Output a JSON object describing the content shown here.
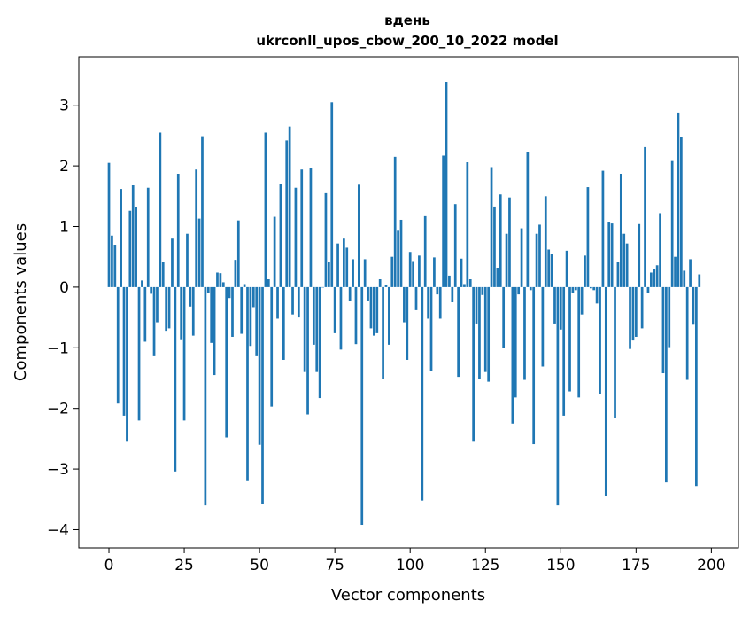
{
  "chart_data": {
    "type": "bar",
    "title_line1": "вдень",
    "title_line2": "ukrconll_upos_cbow_200_10_2022 model",
    "xlabel": "Vector components",
    "ylabel": "Components values",
    "xlim": [
      -10,
      209
    ],
    "ylim": [
      -4.3,
      3.8
    ],
    "x_ticks": [
      0,
      25,
      50,
      75,
      100,
      125,
      150,
      175,
      200
    ],
    "y_ticks": [
      3,
      2,
      1,
      0,
      -1,
      -2,
      -3,
      -4
    ],
    "x_tick_labels": [
      "0",
      "25",
      "50",
      "75",
      "100",
      "125",
      "150",
      "175",
      "200"
    ],
    "y_tick_labels": [
      "3",
      "2",
      "1",
      "0",
      "−1",
      "−2",
      "−3",
      "−4"
    ],
    "bar_color": "#1f77b4",
    "grid": false,
    "values": [
      2.05,
      0.85,
      0.7,
      -1.92,
      1.62,
      -2.12,
      -2.55,
      1.26,
      1.68,
      1.32,
      -2.2,
      0.11,
      -0.9,
      1.64,
      -0.11,
      -1.14,
      -0.58,
      2.55,
      0.42,
      -0.72,
      -0.68,
      0.8,
      -3.04,
      1.87,
      -0.86,
      -2.2,
      0.88,
      -0.32,
      -0.8,
      1.94,
      1.13,
      2.49,
      -3.6,
      -0.1,
      -0.92,
      -1.45,
      0.24,
      0.23,
      0.08,
      -2.48,
      -0.18,
      -0.82,
      0.45,
      1.1,
      -0.77,
      0.05,
      -3.2,
      -0.97,
      -0.33,
      -1.14,
      -2.6,
      -3.58,
      2.55,
      0.13,
      -1.97,
      1.16,
      -0.52,
      1.7,
      -1.2,
      2.42,
      2.65,
      -0.45,
      1.64,
      -0.5,
      1.94,
      -1.4,
      -2.1,
      1.97,
      -0.95,
      -1.4,
      -1.83,
      0.0,
      1.55,
      0.41,
      3.05,
      -0.76,
      0.72,
      -1.03,
      0.8,
      0.65,
      -0.23,
      0.46,
      -0.94,
      1.69,
      -3.92,
      0.46,
      -0.22,
      -0.68,
      -0.8,
      -0.76,
      0.13,
      -1.52,
      0.03,
      -0.95,
      0.5,
      2.15,
      0.93,
      1.11,
      -0.58,
      -1.2,
      0.58,
      0.43,
      -0.38,
      0.52,
      -3.52,
      1.17,
      -0.52,
      -1.38,
      0.49,
      -0.12,
      -0.52,
      2.17,
      3.38,
      0.19,
      -0.25,
      1.37,
      -1.48,
      0.47,
      0.05,
      2.06,
      0.13,
      -2.55,
      -0.6,
      -1.52,
      -0.13,
      -1.4,
      -1.56,
      1.98,
      1.33,
      0.32,
      1.53,
      -1.0,
      0.88,
      1.48,
      -2.25,
      -1.82,
      -0.12,
      0.97,
      -1.53,
      2.23,
      -0.05,
      -2.59,
      0.88,
      1.03,
      -1.31,
      1.5,
      0.62,
      0.55,
      -0.6,
      -3.6,
      -0.7,
      -2.12,
      0.6,
      -1.72,
      -0.1,
      -0.05,
      -1.82,
      -0.45,
      0.52,
      1.65,
      -0.02,
      -0.05,
      -0.27,
      -1.77,
      1.92,
      -3.45,
      1.08,
      1.05,
      -2.16,
      0.42,
      1.87,
      0.88,
      0.72,
      -1.02,
      -0.88,
      -0.82,
      1.04,
      -0.68,
      2.31,
      -0.1,
      0.24,
      0.3,
      0.36,
      1.22,
      -1.42,
      -3.22,
      -0.99,
      2.08,
      0.5,
      2.88,
      2.47,
      0.27,
      -1.53,
      0.46,
      -0.62,
      -3.28,
      0.21
    ]
  }
}
